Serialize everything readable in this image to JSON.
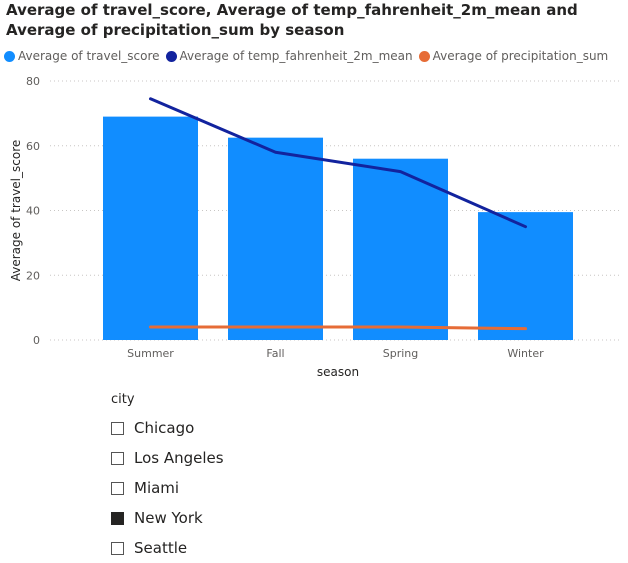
{
  "title": "Average of travel_score, Average of temp_fahrenheit_2m_mean and Average of precipitation_sum by season",
  "chart_data": {
    "type": "bar",
    "categories": [
      "Summer",
      "Fall",
      "Spring",
      "Winter"
    ],
    "series": [
      {
        "name": "Average of travel_score",
        "kind": "bar",
        "color": "#118DFF",
        "values": [
          69,
          62.5,
          56,
          39.5
        ]
      },
      {
        "name": "Average of temp_fahrenheit_2m_mean",
        "kind": "line",
        "color": "#12239E",
        "values": [
          74.5,
          58,
          52,
          35
        ]
      },
      {
        "name": "Average of precipitation_sum",
        "kind": "line",
        "color": "#E66C37",
        "values": [
          4,
          4,
          4,
          3.5
        ]
      }
    ],
    "xlabel": "season",
    "ylabel": "Average of travel_score",
    "ylim": [
      0,
      80
    ],
    "yticks": [
      "0",
      "20",
      "40",
      "60",
      "80"
    ],
    "grid": true,
    "legend": "top-left"
  },
  "slicer": {
    "title": "city",
    "items": [
      {
        "label": "Chicago",
        "checked": false
      },
      {
        "label": "Los Angeles",
        "checked": false
      },
      {
        "label": "Miami",
        "checked": false
      },
      {
        "label": "New York",
        "checked": true
      },
      {
        "label": "Seattle",
        "checked": false
      }
    ]
  }
}
